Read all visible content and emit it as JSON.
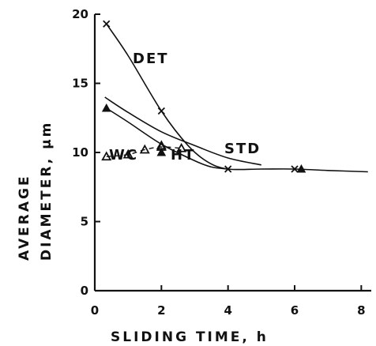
{
  "chart_data": {
    "type": "line",
    "title": "",
    "xlabel": "SLIDING TIME, h",
    "ylabel_line1": "AVERAGE",
    "ylabel_line2": "DIAMETER, µm",
    "xlim": [
      0,
      8.3
    ],
    "ylim": [
      0,
      20
    ],
    "x_ticks": [
      0,
      2,
      4,
      6,
      8
    ],
    "y_ticks": [
      0,
      5,
      10,
      15,
      20
    ],
    "x_tick_labels": [
      "0",
      "2",
      "4",
      "6",
      "8"
    ],
    "y_tick_labels": [
      "0",
      "5",
      "10",
      "15",
      "20"
    ],
    "grid": false,
    "series": [
      {
        "name": "DET",
        "marker": "x",
        "points": [
          [
            0.35,
            19.3
          ],
          [
            2.0,
            13.0
          ],
          [
            4.0,
            8.8
          ],
          [
            6.0,
            8.8
          ]
        ],
        "curve": [
          [
            0.35,
            19.3
          ],
          [
            1.0,
            17.0
          ],
          [
            2.0,
            13.0
          ],
          [
            2.8,
            10.5
          ],
          [
            3.4,
            9.3
          ],
          [
            4.0,
            8.8
          ],
          [
            5.0,
            8.8
          ],
          [
            6.0,
            8.8
          ],
          [
            7.0,
            8.7
          ],
          [
            8.2,
            8.6
          ]
        ]
      },
      {
        "name": "STD",
        "marker": "none",
        "points": [],
        "curve": [
          [
            0.3,
            14.0
          ],
          [
            1.0,
            12.9
          ],
          [
            2.0,
            11.5
          ],
          [
            3.0,
            10.5
          ],
          [
            4.0,
            9.6
          ],
          [
            5.0,
            9.1
          ]
        ]
      },
      {
        "name": "HT",
        "marker": "filled-triangle",
        "points": [
          [
            0.35,
            13.2
          ],
          [
            2.0,
            10.0
          ]
        ],
        "curve": [
          [
            0.35,
            13.2
          ],
          [
            1.0,
            12.2
          ],
          [
            2.0,
            10.6
          ],
          [
            3.0,
            9.4
          ],
          [
            3.5,
            8.95
          ],
          [
            4.0,
            8.8
          ]
        ]
      },
      {
        "name": "WC",
        "marker": "open-triangle",
        "points": [
          [
            0.35,
            9.7
          ],
          [
            1.0,
            9.85
          ],
          [
            1.5,
            10.2
          ],
          [
            2.0,
            10.4
          ],
          [
            2.6,
            10.3
          ]
        ],
        "curve": [
          [
            0.35,
            9.7
          ],
          [
            1.0,
            9.85
          ],
          [
            1.5,
            10.2
          ],
          [
            2.0,
            10.4
          ],
          [
            2.6,
            10.3
          ]
        ],
        "dashed": true
      }
    ],
    "extra_markers": [
      {
        "shape": "open-triangle",
        "x": 2.0,
        "y": 10.5
      },
      {
        "shape": "filled-triangle",
        "x": 6.2,
        "y": 8.8
      }
    ]
  }
}
